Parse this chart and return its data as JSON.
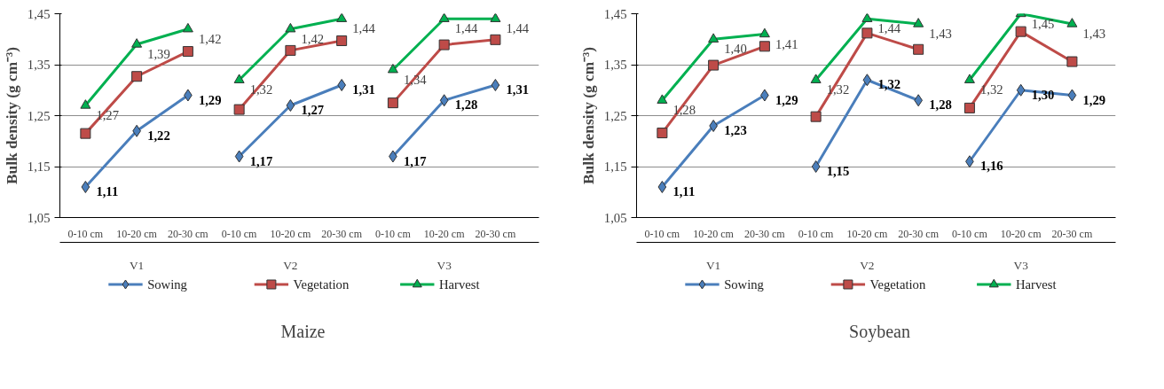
{
  "chart_data": [
    {
      "type": "line",
      "title": "Maize",
      "ylabel": "Bulk density (g cm⁻³)",
      "categories": [
        "0-10 cm",
        "10-20 cm",
        "20-30 cm",
        "0-10 cm",
        "10-20 cm",
        "20-30 cm",
        "0-10 cm",
        "10-20 cm",
        "20-30 cm"
      ],
      "annotations": [
        "V1",
        "V2",
        "V3"
      ],
      "ylim": [
        1.05,
        1.45
      ],
      "yticks": [
        {
          "value": 1.05,
          "label": "1,05"
        },
        {
          "value": 1.15,
          "label": "1,15"
        },
        {
          "value": 1.25,
          "label": "1,25"
        },
        {
          "value": 1.35,
          "label": "1,35"
        },
        {
          "value": 1.45,
          "label": "1,45"
        }
      ],
      "grid": "y",
      "legend": "bottom",
      "series": [
        {
          "name": "Sowing",
          "color": "#4a7ebb",
          "marker": "diamond",
          "values": [
            1.11,
            1.22,
            1.29,
            1.17,
            1.27,
            1.31,
            1.17,
            1.28,
            1.31
          ],
          "value_labels": [
            "1,11",
            "1,22",
            "1,29",
            "1,17",
            "1,27",
            "1,31",
            "1,17",
            "1,28",
            "1,31"
          ]
        },
        {
          "name": "Vegetation",
          "color": "#be4b48",
          "marker": "square",
          "values": [
            1.215,
            1.327,
            1.376,
            1.262,
            1.378,
            1.397,
            1.275,
            1.389,
            1.399
          ]
        },
        {
          "name": "Harvest",
          "color": "#00b050",
          "marker": "triangle",
          "values": [
            1.27,
            1.39,
            1.42,
            1.32,
            1.42,
            1.44,
            1.34,
            1.44,
            1.44
          ],
          "value_labels": [
            "1,27",
            "1,39",
            "1,42",
            "1,32",
            "1,42",
            "1,44",
            "1,34",
            "1,44",
            "1,44"
          ]
        }
      ]
    },
    {
      "type": "line",
      "title": "Soybean",
      "ylabel": "Bulk density (g cm⁻³)",
      "categories": [
        "0-10 cm",
        "10-20 cm",
        "20-30 cm",
        "0-10 cm",
        "10-20 cm",
        "20-30 cm",
        "0-10 cm",
        "10-20 cm",
        "20-30 cm"
      ],
      "annotations": [
        "V1",
        "V2",
        "V3"
      ],
      "ylim": [
        1.05,
        1.45
      ],
      "yticks": [
        {
          "value": 1.05,
          "label": "1,05"
        },
        {
          "value": 1.15,
          "label": "1,15"
        },
        {
          "value": 1.25,
          "label": "1,25"
        },
        {
          "value": 1.35,
          "label": "1,35"
        },
        {
          "value": 1.45,
          "label": "1,45"
        }
      ],
      "grid": "y",
      "legend": "bottom",
      "series": [
        {
          "name": "Sowing",
          "color": "#4a7ebb",
          "marker": "diamond",
          "values": [
            1.11,
            1.23,
            1.29,
            1.15,
            1.32,
            1.28,
            1.16,
            1.3,
            1.29
          ],
          "value_labels": [
            "1,11",
            "1,23",
            "1,29",
            "1,15",
            "1,32",
            "1,28",
            "1,16",
            "1,30",
            "1,29"
          ]
        },
        {
          "name": "Vegetation",
          "color": "#be4b48",
          "marker": "square",
          "values": [
            1.216,
            1.349,
            1.386,
            1.248,
            1.412,
            1.38,
            1.265,
            1.415,
            1.356
          ]
        },
        {
          "name": "Harvest",
          "color": "#00b050",
          "marker": "triangle",
          "values": [
            1.28,
            1.4,
            1.41,
            1.32,
            1.44,
            1.43,
            1.32,
            1.45,
            1.43
          ],
          "value_labels": [
            "1,28",
            "1,40",
            "1,41",
            "1,32",
            "1,44",
            "1,43",
            "1,32",
            "1,45",
            "1,43"
          ]
        }
      ]
    }
  ]
}
